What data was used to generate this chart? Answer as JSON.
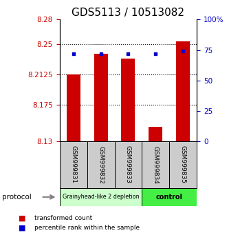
{
  "title": "GDS5113 / 10513082",
  "samples": [
    "GSM999831",
    "GSM999832",
    "GSM999833",
    "GSM999834",
    "GSM999835"
  ],
  "red_values": [
    8.2125,
    8.238,
    8.232,
    8.148,
    8.253
  ],
  "blue_values_pct": [
    72,
    72,
    72,
    72,
    74
  ],
  "ylim_left": [
    8.13,
    8.28
  ],
  "ylim_right": [
    0,
    100
  ],
  "yticks_left": [
    8.13,
    8.175,
    8.2125,
    8.25,
    8.28
  ],
  "yticks_right": [
    0,
    25,
    50,
    75,
    100
  ],
  "ytick_labels_left": [
    "8.13",
    "8.175",
    "8.2125",
    "8.25",
    "8.28"
  ],
  "ytick_labels_right": [
    "0",
    "25",
    "50",
    "75",
    "100%"
  ],
  "hlines": [
    8.25,
    8.2125,
    8.175
  ],
  "bar_bottom": 8.13,
  "bar_width": 0.5,
  "red_color": "#cc0000",
  "blue_color": "#0000cc",
  "group1_count": 3,
  "group2_count": 2,
  "group1_label": "Grainyhead-like 2 depletion",
  "group2_label": "control",
  "protocol_label": "protocol",
  "legend_red": "transformed count",
  "legend_blue": "percentile rank within the sample",
  "group1_color": "#ccffcc",
  "group2_color": "#44ee44",
  "sample_box_color": "#cccccc",
  "title_fontsize": 11,
  "tick_fontsize": 7.5
}
